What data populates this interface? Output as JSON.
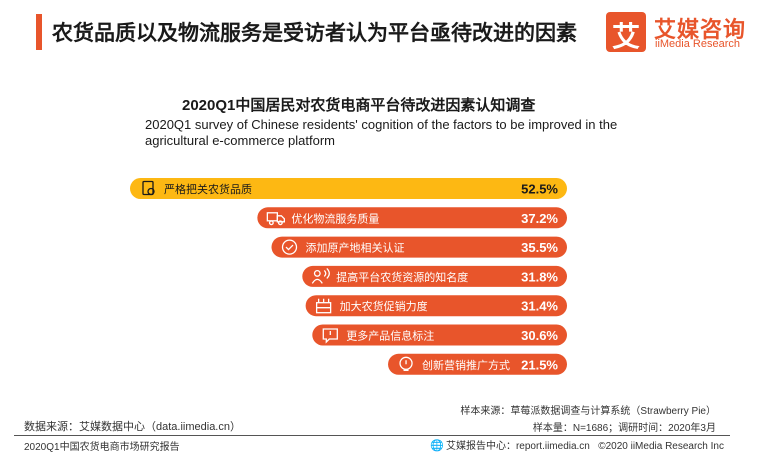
{
  "header": {
    "title": "农货品质以及物流服务是受访者认为平台亟待改进的因素",
    "logo_glyph": "艾",
    "logo_cn": "艾媒咨询",
    "logo_en": "iiMedia Research"
  },
  "chart_data": {
    "type": "bar",
    "orientation": "horizontal",
    "title": "2020Q1中国居民对农货电商平台待改进因素认知调查",
    "subtitle": "2020Q1 survey of Chinese residents' cognition of the factors to be improved in the agricultural e-commerce platform",
    "xlabel": "",
    "ylabel": "",
    "unit": "%",
    "xlim": [
      0,
      52.5
    ],
    "grid": false,
    "legend": "none",
    "categories": [
      "严格把关农货品质",
      "优化物流服务质量",
      "添加原产地相关认证",
      "提高平台农货资源的知名度",
      "加大农货促销力度",
      "更多产品信息标注",
      "创新营销推广方式"
    ],
    "values": [
      52.5,
      37.2,
      35.5,
      31.8,
      31.4,
      30.6,
      21.5
    ],
    "value_labels": [
      "52.5%",
      "37.2%",
      "35.5%",
      "31.8%",
      "31.4%",
      "30.6%",
      "21.5%"
    ],
    "icons": [
      "quality-check-icon",
      "delivery-truck-icon",
      "certified-check-icon",
      "broadcast-person-icon",
      "promotion-tag-icon",
      "info-message-icon",
      "idea-bulb-icon"
    ],
    "colors": {
      "top": "#fdb813",
      "default": "#e8552b",
      "label_dark": "#1a1a1a",
      "label_light": "#ffffff"
    }
  },
  "meta": {
    "sample_source": "样本来源：草莓派数据调查与计算系统（Strawberry Pie）",
    "sample_size": "样本量：N=1686；调研时间：2020年3月"
  },
  "footer": {
    "source": "数据来源：艾媒数据中心（data.iimedia.cn）",
    "report": "2020Q1中国农货电商市场研究报告",
    "center": "艾媒报告中心：report.iimedia.cn",
    "copyright": "©2020  iiMedia Research  Inc"
  }
}
